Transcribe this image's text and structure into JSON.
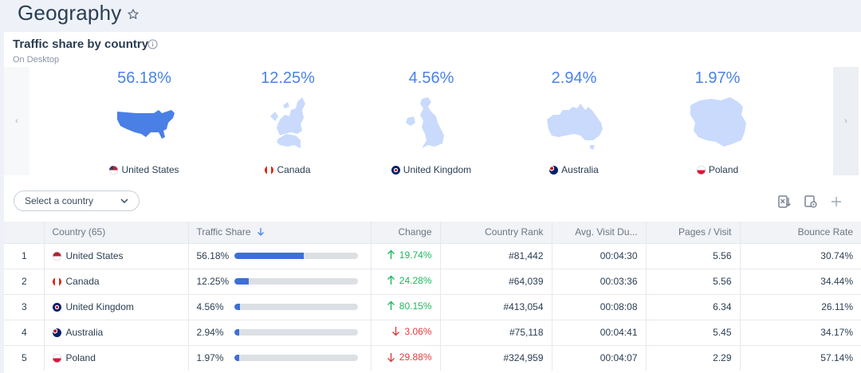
{
  "page": {
    "title": "Geography"
  },
  "card": {
    "title": "Traffic share by country",
    "subtitle": "On Desktop"
  },
  "carousel": {
    "prev": "‹",
    "next": "›",
    "tiles": [
      {
        "pct": "56.18%",
        "name": "United States",
        "map": "usa",
        "flag": "us"
      },
      {
        "pct": "12.25%",
        "name": "Canada",
        "map": "canada",
        "flag": "ca"
      },
      {
        "pct": "4.56%",
        "name": "United Kingdom",
        "map": "uk",
        "flag": "gb"
      },
      {
        "pct": "2.94%",
        "name": "Australia",
        "map": "australia",
        "flag": "au"
      },
      {
        "pct": "1.97%",
        "name": "Poland",
        "map": "poland",
        "flag": "pl"
      }
    ]
  },
  "filters": {
    "select_country": "Select a country"
  },
  "toolbar": {
    "icons": [
      "excel-download-icon",
      "settings-icon",
      "plus-icon"
    ]
  },
  "table": {
    "headers": [
      "Country (65)",
      "Traffic Share",
      "Change",
      "Country Rank",
      "Avg. Visit Du...",
      "Pages / Visit",
      "Bounce Rate"
    ],
    "rows": [
      {
        "idx": "1",
        "country": "United States",
        "flag": "us",
        "share": "56.18%",
        "share_frac": 0.5618,
        "change": "19.74%",
        "dir": "up",
        "rank": "#81,442",
        "avg": "00:04:30",
        "ppv": "5.56",
        "bounce": "30.74%"
      },
      {
        "idx": "2",
        "country": "Canada",
        "flag": "ca",
        "share": "12.25%",
        "share_frac": 0.1225,
        "change": "24.28%",
        "dir": "up",
        "rank": "#64,039",
        "avg": "00:03:36",
        "ppv": "5.56",
        "bounce": "34.44%"
      },
      {
        "idx": "3",
        "country": "United Kingdom",
        "flag": "gb",
        "share": "4.56%",
        "share_frac": 0.0456,
        "change": "80.15%",
        "dir": "up",
        "rank": "#413,054",
        "avg": "00:08:08",
        "ppv": "6.34",
        "bounce": "26.11%"
      },
      {
        "idx": "4",
        "country": "Australia",
        "flag": "au",
        "share": "2.94%",
        "share_frac": 0.0294,
        "change": "3.06%",
        "dir": "down",
        "rank": "#75,118",
        "avg": "00:04:41",
        "ppv": "5.45",
        "bounce": "34.17%"
      },
      {
        "idx": "5",
        "country": "Poland",
        "flag": "pl",
        "share": "1.97%",
        "share_frac": 0.0197,
        "change": "29.88%",
        "dir": "down",
        "rank": "#324,959",
        "avg": "00:04:07",
        "ppv": "2.29",
        "bounce": "57.14%"
      }
    ]
  },
  "colors": {
    "accent": "#4a82e8",
    "map_primary": "#4a7fe6",
    "map_light": "#c9dafc",
    "bar_fill": "#3e6fd6",
    "up": "#1fb860",
    "down": "#e23b3b"
  }
}
